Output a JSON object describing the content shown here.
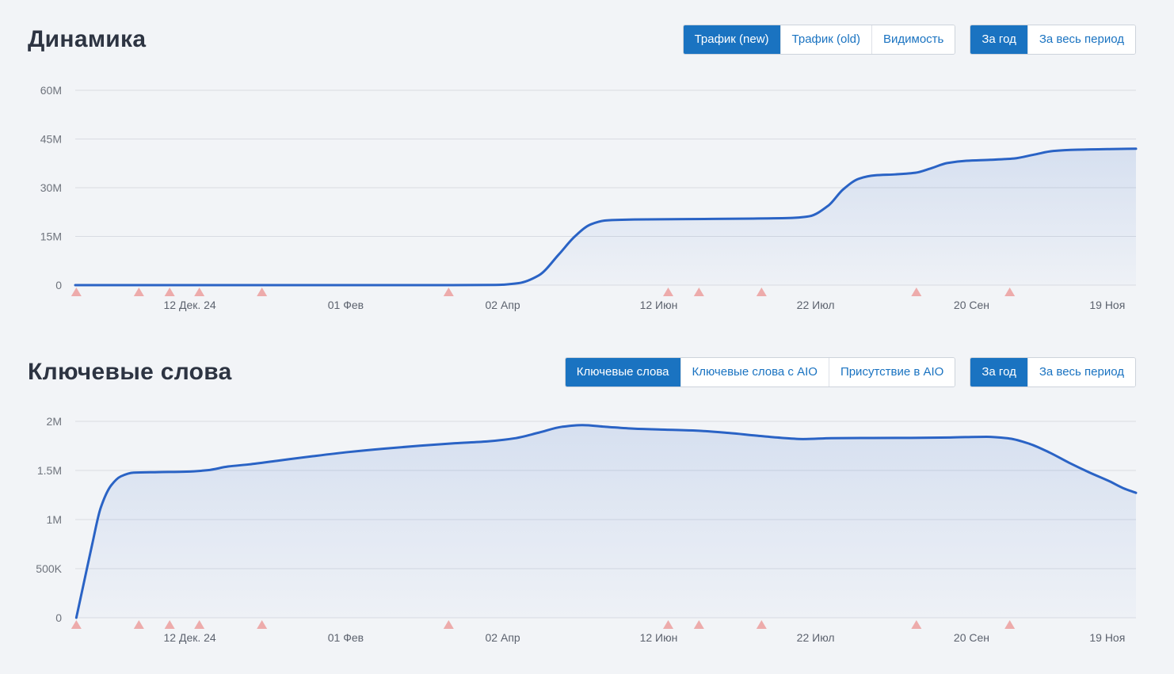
{
  "colors": {
    "page_bg": "#f2f4f7",
    "title_text": "#2d3442",
    "accent_blue": "#1a73c1",
    "line_blue": "#2a63c5",
    "grid_line": "#d9dce2",
    "y_tick_text": "#6e737c",
    "x_tick_text": "#5c626e",
    "event_marker_pink": "#edabab"
  },
  "section_dynamics": {
    "title": "Динамика",
    "metric_tabs": [
      {
        "label": "Трафик (new)",
        "active": true
      },
      {
        "label": "Трафик (old)",
        "active": false
      },
      {
        "label": "Видимость",
        "active": false
      }
    ],
    "period_tabs": [
      {
        "label": "За год",
        "active": true
      },
      {
        "label": "За весь период",
        "active": false
      }
    ]
  },
  "section_keywords": {
    "title": "Ключевые слова",
    "metric_tabs": [
      {
        "label": "Ключевые слова",
        "active": true
      },
      {
        "label": "Ключевые слова с AIO",
        "active": false
      },
      {
        "label": "Присутствие в AIO",
        "active": false
      }
    ],
    "period_tabs": [
      {
        "label": "За год",
        "active": true
      },
      {
        "label": "За весь период",
        "active": false
      }
    ]
  },
  "chart_data": [
    {
      "id": "traffic",
      "type": "area",
      "title": "Динамика",
      "series_name": "Трафик (new)",
      "unit": "visits, millions",
      "grid": "horizontal",
      "legend": "none",
      "ylim": [
        0,
        60
      ],
      "yticks": [
        {
          "value": 0,
          "label": "0"
        },
        {
          "value": 15,
          "label": "15M"
        },
        {
          "value": 30,
          "label": "30M"
        },
        {
          "value": 45,
          "label": "45M"
        },
        {
          "value": 60,
          "label": "60M"
        }
      ],
      "xlabels": [
        {
          "pos": 0.108,
          "label": "12 Дек. 24"
        },
        {
          "pos": 0.255,
          "label": "01 Фев"
        },
        {
          "pos": 0.403,
          "label": "02 Апр"
        },
        {
          "pos": 0.55,
          "label": "12 Июн"
        },
        {
          "pos": 0.698,
          "label": "22 Июл"
        },
        {
          "pos": 0.845,
          "label": "20 Сен"
        },
        {
          "pos": 0.973,
          "label": "19 Ноя"
        }
      ],
      "event_marker_positions": [
        0.001,
        0.06,
        0.089,
        0.117,
        0.176,
        0.352,
        0.559,
        0.588,
        0.647,
        0.793,
        0.881
      ],
      "points": [
        [
          0.0,
          0
        ],
        [
          0.064,
          0
        ],
        [
          0.138,
          0
        ],
        [
          0.213,
          0
        ],
        [
          0.288,
          0
        ],
        [
          0.355,
          0
        ],
        [
          0.396,
          0.05
        ],
        [
          0.418,
          0.6
        ],
        [
          0.437,
          3
        ],
        [
          0.456,
          9.5
        ],
        [
          0.471,
          15
        ],
        [
          0.486,
          18.7
        ],
        [
          0.5,
          19.9
        ],
        [
          0.527,
          20.2
        ],
        [
          0.564,
          20.3
        ],
        [
          0.601,
          20.4
        ],
        [
          0.639,
          20.5
        ],
        [
          0.676,
          20.7
        ],
        [
          0.692,
          21.2
        ],
        [
          0.71,
          24.5
        ],
        [
          0.724,
          29.5
        ],
        [
          0.739,
          32.8
        ],
        [
          0.754,
          33.8
        ],
        [
          0.773,
          34.1
        ],
        [
          0.792,
          34.6
        ],
        [
          0.807,
          36.0
        ],
        [
          0.822,
          37.6
        ],
        [
          0.84,
          38.3
        ],
        [
          0.863,
          38.6
        ],
        [
          0.885,
          39.0
        ],
        [
          0.904,
          40.2
        ],
        [
          0.922,
          41.3
        ],
        [
          0.945,
          41.7
        ],
        [
          0.975,
          41.9
        ],
        [
          1.0,
          42.0
        ]
      ]
    },
    {
      "id": "keywords",
      "type": "area",
      "title": "Ключевые слова",
      "series_name": "Ключевые слова",
      "unit": "keywords, thousands",
      "grid": "horizontal",
      "legend": "none",
      "ylim": [
        0,
        2000
      ],
      "yticks": [
        {
          "value": 0,
          "label": "0"
        },
        {
          "value": 500,
          "label": "500K"
        },
        {
          "value": 1000,
          "label": "1M"
        },
        {
          "value": 1500,
          "label": "1.5M"
        },
        {
          "value": 2000,
          "label": "2M"
        }
      ],
      "xlabels": [
        {
          "pos": 0.108,
          "label": "12 Дек. 24"
        },
        {
          "pos": 0.255,
          "label": "01 Фев"
        },
        {
          "pos": 0.403,
          "label": "02 Апр"
        },
        {
          "pos": 0.55,
          "label": "12 Июн"
        },
        {
          "pos": 0.698,
          "label": "22 Июл"
        },
        {
          "pos": 0.845,
          "label": "20 Сен"
        },
        {
          "pos": 0.973,
          "label": "19 Ноя"
        }
      ],
      "event_marker_positions": [
        0.001,
        0.06,
        0.089,
        0.117,
        0.176,
        0.352,
        0.559,
        0.588,
        0.647,
        0.793,
        0.881
      ],
      "points": [
        [
          0.001,
          0
        ],
        [
          0.008,
          350
        ],
        [
          0.016,
          750
        ],
        [
          0.024,
          1120
        ],
        [
          0.034,
          1350
        ],
        [
          0.043,
          1440
        ],
        [
          0.055,
          1478
        ],
        [
          0.078,
          1483
        ],
        [
          0.105,
          1488
        ],
        [
          0.125,
          1503
        ],
        [
          0.144,
          1540
        ],
        [
          0.164,
          1562
        ],
        [
          0.19,
          1598
        ],
        [
          0.224,
          1645
        ],
        [
          0.258,
          1688
        ],
        [
          0.291,
          1722
        ],
        [
          0.325,
          1752
        ],
        [
          0.358,
          1777
        ],
        [
          0.388,
          1795
        ],
        [
          0.414,
          1827
        ],
        [
          0.437,
          1885
        ],
        [
          0.459,
          1945
        ],
        [
          0.478,
          1962
        ],
        [
          0.5,
          1945
        ],
        [
          0.527,
          1925
        ],
        [
          0.556,
          1915
        ],
        [
          0.586,
          1905
        ],
        [
          0.616,
          1882
        ],
        [
          0.642,
          1855
        ],
        [
          0.665,
          1833
        ],
        [
          0.687,
          1820
        ],
        [
          0.713,
          1829
        ],
        [
          0.751,
          1831
        ],
        [
          0.788,
          1832
        ],
        [
          0.825,
          1836
        ],
        [
          0.859,
          1843
        ],
        [
          0.881,
          1825
        ],
        [
          0.9,
          1770
        ],
        [
          0.919,
          1680
        ],
        [
          0.937,
          1578
        ],
        [
          0.956,
          1480
        ],
        [
          0.975,
          1390
        ],
        [
          0.988,
          1320
        ],
        [
          1.0,
          1272
        ]
      ]
    }
  ]
}
